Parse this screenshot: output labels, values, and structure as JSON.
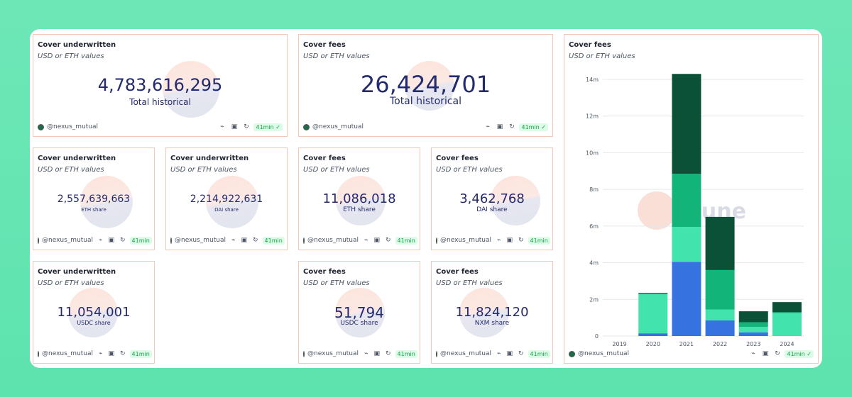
{
  "dashboard": {
    "user": "@nexus_mutual",
    "badge": "41min",
    "badge_short": "41min",
    "icons": [
      "link-icon",
      "camera-icon",
      "refresh-icon"
    ],
    "watermark": "Dune",
    "colors": {
      "bignum": "#232a6e",
      "border": "#f5c6b8",
      "badge_text": "#16a34a",
      "badge_bg": "#dcfce7"
    }
  },
  "panels": [
    {
      "title": "Cover underwritten",
      "subtitle": "USD or ETH values",
      "value": "4,783,616,295",
      "caption": "Total historical"
    },
    {
      "title": "Cover fees",
      "subtitle": "USD or ETH values",
      "value": "26,424,701",
      "caption": "Total historical"
    },
    {
      "title": "Cover underwritten",
      "subtitle": "USD or ETH values",
      "value": "2,557,639,663",
      "caption": "ETH share"
    },
    {
      "title": "Cover underwritten",
      "subtitle": "USD or ETH values",
      "value": "2,214,922,631",
      "caption": "DAI share"
    },
    {
      "title": "Cover fees",
      "subtitle": "USD or ETH values",
      "value": "11,086,018",
      "caption": "ETH share"
    },
    {
      "title": "Cover fees",
      "subtitle": "USD or ETH values",
      "value": "3,462,768",
      "caption": "DAI share"
    },
    {
      "title": "Cover underwritten",
      "subtitle": "USD or ETH values",
      "value": "11,054,001",
      "caption": "USDC share"
    },
    {
      "title": "Cover fees",
      "subtitle": "USD or ETH values",
      "value": "51,794",
      "caption": "USDC share"
    },
    {
      "title": "Cover fees",
      "subtitle": "USD or ETH values",
      "value": "11,824,120",
      "caption": "NXM share"
    }
  ],
  "chart_panel": {
    "title": "Cover fees",
    "subtitle": "USD or ETH values"
  },
  "chart_data": {
    "type": "bar",
    "stacked": true,
    "categories": [
      "2019",
      "2020",
      "2021",
      "2022",
      "2023",
      "2024"
    ],
    "series": [
      {
        "color": "#3673e0",
        "values": [
          0,
          0.15,
          4.05,
          0.85,
          0.2,
          0
        ]
      },
      {
        "color": "#43e3ad",
        "values": [
          0,
          2.15,
          1.9,
          0.6,
          0.3,
          1.25
        ]
      },
      {
        "color": "#12b47a",
        "values": [
          0,
          0,
          2.9,
          2.15,
          0.25,
          0.05
        ]
      },
      {
        "color": "#0a5137",
        "values": [
          0,
          0.05,
          5.45,
          2.9,
          0.6,
          0.55
        ]
      }
    ],
    "yticks": [
      "0",
      "2m",
      "4m",
      "6m",
      "8m",
      "10m",
      "12m",
      "14m"
    ],
    "ylim": [
      0,
      14
    ],
    "grid": true
  }
}
